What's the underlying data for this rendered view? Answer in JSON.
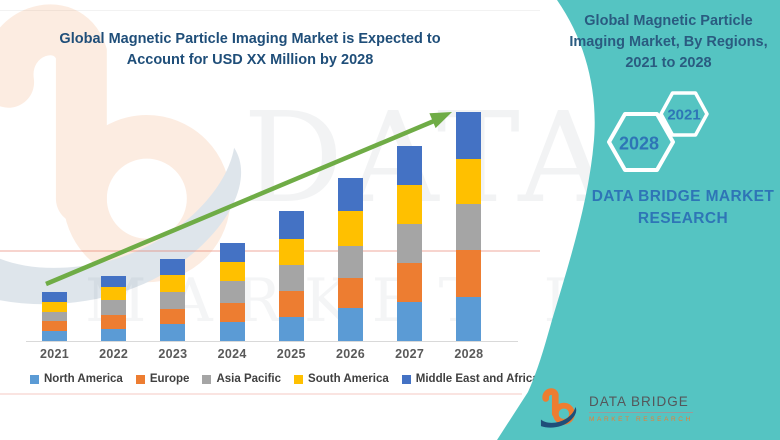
{
  "header": {
    "title_lines": [
      "Global Magnetic Particle Imaging Market is Expected to",
      "Account for USD XX Million by 2028"
    ],
    "title_color": "#1F4E79"
  },
  "chart_data": {
    "type": "bar",
    "stacked": true,
    "title": "Global Magnetic Particle Imaging Market is Expected to Account for USD XX Million by 2028",
    "xlabel": "",
    "ylabel": "",
    "grid": false,
    "legend_position": "bottom",
    "trend_arrow": true,
    "value_note": "No numeric axis shown (market sized as 'USD XX Million'); values are relative stacked-segment heights in screen pixels read from the bars",
    "categories": [
      "2021",
      "2022",
      "2023",
      "2024",
      "2025",
      "2026",
      "2027",
      "2028"
    ],
    "series": [
      {
        "name": "North America",
        "color": "#5B9BD5",
        "values": [
          10,
          12,
          17,
          19,
          24,
          33,
          39,
          44
        ]
      },
      {
        "name": "Europe",
        "color": "#ED7D31",
        "values": [
          10,
          14,
          15,
          19,
          26,
          30,
          39,
          47
        ]
      },
      {
        "name": "Asia Pacific",
        "color": "#A5A5A5",
        "values": [
          9,
          15,
          17,
          22,
          26,
          32,
          39,
          46
        ]
      },
      {
        "name": "South America",
        "color": "#FFC000",
        "values": [
          10,
          13,
          17,
          19,
          26,
          35,
          39,
          45
        ]
      },
      {
        "name": "Middle East and Africa",
        "color": "#4472C4",
        "values": [
          10,
          11,
          16,
          19,
          28,
          33,
          39,
          47
        ]
      }
    ],
    "totals": [
      49,
      65,
      82,
      98,
      130,
      163,
      195,
      229
    ]
  },
  "right_panel": {
    "background_color": "#55C4C2",
    "title_lines": [
      "Global Magnetic Particle",
      "Imaging Market, By Regions,",
      "2021 to 2028"
    ],
    "badges": [
      {
        "label": "2021"
      },
      {
        "label": "2028"
      }
    ],
    "brand_lines": [
      "DATA BRIDGE MARKET",
      "RESEARCH"
    ],
    "brand_color": "#2E75B6"
  },
  "footer_logo": {
    "name": "DATA BRIDGE",
    "tagline": "MARKET RESEARCH"
  },
  "watermark": {
    "line1": "DATA BRIDGE",
    "line2": "MARKET RESEARCH"
  },
  "colors": {
    "arrow_green": "#6FAC46",
    "axis_label": "#595959",
    "legend_text": "#404040",
    "logo_orange": "#ED7D31",
    "logo_navy": "#1F4E79"
  }
}
